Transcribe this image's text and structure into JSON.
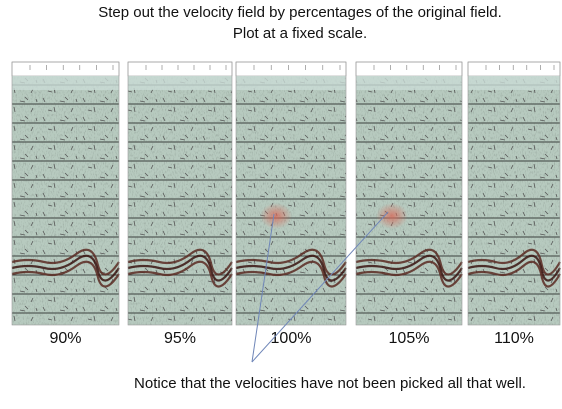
{
  "header": {
    "title_line1": "Step out the velocity field by percentages of the original field.",
    "title_line2": "Plot at a fixed scale."
  },
  "panels": [
    {
      "label": "90%"
    },
    {
      "label": "95%"
    },
    {
      "label": "100%"
    },
    {
      "label": "105%"
    },
    {
      "label": "110%"
    }
  ],
  "note": "Notice that the velocities have not been picked all that well."
}
